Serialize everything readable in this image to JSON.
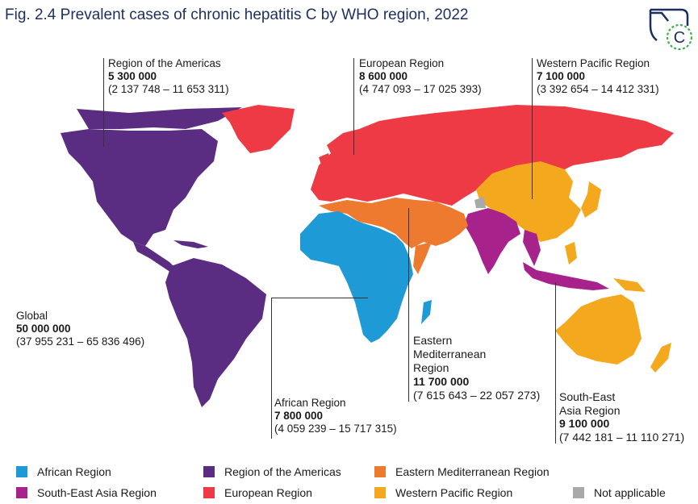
{
  "title": "Fig. 2.4 Prevalent cases of chronic hepatitis C by WHO region, 2022",
  "logo": {
    "icon": "hepatitis-c-liver-logo-icon",
    "letter": "C"
  },
  "colors": {
    "african": "#1e9ad6",
    "americas": "#5b2d82",
    "eastern_med": "#ee7a2f",
    "south_east_asia": "#a8228c",
    "european": "#ee3a45",
    "western_pacific": "#f4a81d",
    "not_applicable": "#a9a9a9"
  },
  "regions": {
    "americas": {
      "name": "Region of the Americas",
      "cases": "5 300 000",
      "range": "(2 137 748 – 11 653 311)"
    },
    "european": {
      "name": "European Region",
      "cases": "8 600 000",
      "range": "(4 747 093 – 17 025 393)"
    },
    "western_pacific": {
      "name": "Western Pacific Region",
      "cases": "7 100 000",
      "range": "(3 392 654 – 14 412 331)"
    },
    "global": {
      "name": "Global",
      "cases": "50 000 000",
      "range": "(37 955 231 – 65 836 496)"
    },
    "african": {
      "name": "African Region",
      "cases": "7 800 000",
      "range": "(4 059 239 – 15 717 315)"
    },
    "eastern_med": {
      "name_l1": "Eastern",
      "name_l2": "Mediterranean",
      "name_l3": "Region",
      "cases": "11 700 000",
      "range": "(7 615 643 – 22 057 273)"
    },
    "south_east_asia": {
      "name_l1": "South-East",
      "name_l2": "Asia Region",
      "cases": "9 100 000",
      "range": "(7 442 181 – 11 110 271)"
    }
  },
  "legend": {
    "african": "African Region",
    "americas": "Region of the Americas",
    "eastern_med": "Eastern Mediterranean Region",
    "south_east_asia": "South-East Asia Region",
    "european": "European Region",
    "western_pacific": "Western Pacific Region",
    "not_applicable": "Not applicable"
  }
}
